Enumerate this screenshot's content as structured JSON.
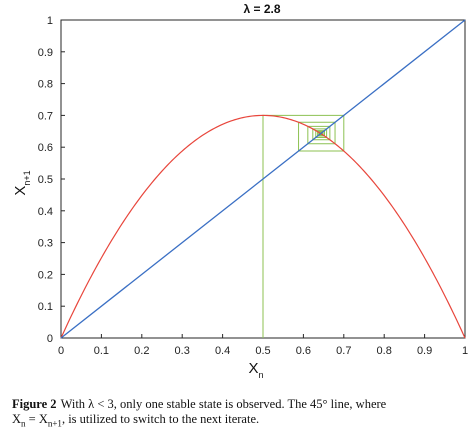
{
  "chart_data": {
    "type": "line",
    "title": "λ = 2.8",
    "xlabel": "X",
    "xlabel_sub": "n",
    "ylabel": "X",
    "ylabel_sub": "n+1",
    "xlim": [
      0,
      1
    ],
    "ylim": [
      0,
      1
    ],
    "x_ticks": [
      "0",
      "0.1",
      "0.2",
      "0.3",
      "0.4",
      "0.5",
      "0.6",
      "0.7",
      "0.8",
      "0.9",
      "1"
    ],
    "y_ticks": [
      "0",
      "0.1",
      "0.2",
      "0.3",
      "0.4",
      "0.5",
      "0.6",
      "0.7",
      "0.8",
      "0.9",
      "1"
    ],
    "grid": false,
    "lambda": 2.8,
    "series": [
      {
        "kind": "parabola",
        "color": "#e8463c",
        "x": [
          0,
          0.1,
          0.2,
          0.3,
          0.4,
          0.5,
          0.6,
          0.7,
          0.8,
          0.9,
          1
        ],
        "y": [
          0,
          0.252,
          0.448,
          0.588,
          0.672,
          0.7,
          0.672,
          0.588,
          0.448,
          0.252,
          0
        ]
      },
      {
        "kind": "identity",
        "color": "#3a6fc4",
        "x": [
          0,
          1
        ],
        "y": [
          0,
          1
        ]
      },
      {
        "kind": "cobweb",
        "color": "#8cc152",
        "x0": 0.5,
        "iterations": 20
      }
    ]
  },
  "caption": {
    "label": "Figure 2",
    "line1": "With λ < 3, only one stable state is observed. The 45° line, where",
    "line2_pre": "X",
    "line2_sub1": "n",
    "line2_mid": " = X",
    "line2_sub2": "n+1",
    "line2_post": ", is utilized to switch to the next iterate."
  }
}
